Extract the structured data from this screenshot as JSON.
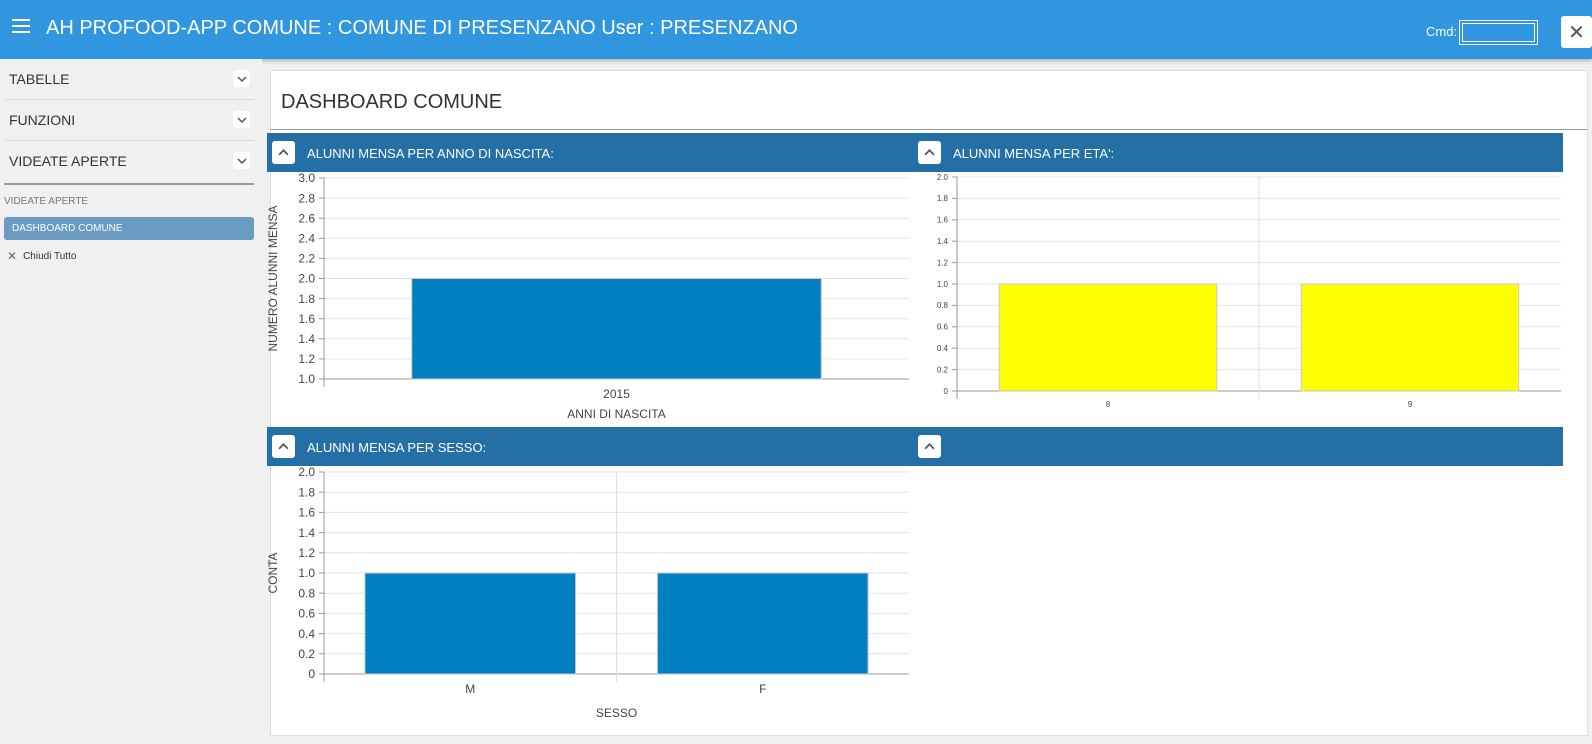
{
  "header": {
    "title": "AH PROFOOD-APP COMUNE : COMUNE DI PRESENZANO User : PRESENZANO",
    "cmd_label": "Cmd:",
    "cmd_value": "",
    "close_label": "✕",
    "accent": "#2f96df"
  },
  "sidebar": {
    "sections": [
      {
        "label": "TABELLE"
      },
      {
        "label": "FUNZIONI"
      },
      {
        "label": "VIDEATE APERTE"
      }
    ],
    "caption": "VIDEATE APERTE",
    "active_item": "DASHBOARD COMUNE",
    "close_all_icon": "✕",
    "close_all": "Chiudi Tutto"
  },
  "main": {
    "title": "DASHBOARD COMUNE",
    "panels": [
      {
        "title": "ALUNNI MENSA PER ANNO DI NASCITA:"
      },
      {
        "title": "ALUNNI MENSA PER ETA':"
      },
      {
        "title": "ALUNNI MENSA PER SESSO:"
      },
      {
        "title": ""
      }
    ]
  },
  "chart_data": [
    {
      "type": "bar",
      "categories": [
        "2015"
      ],
      "values": [
        2
      ],
      "xlabel": "ANNI DI NASCITA",
      "ylabel": "NUMERO ALUNNI MENSA",
      "ylim": [
        1.0,
        3.0
      ],
      "yticks": [
        "1.0",
        "1.2",
        "1.4",
        "1.6",
        "1.8",
        "2.0",
        "2.2",
        "2.4",
        "2.6",
        "2.8",
        "3.0"
      ],
      "color": "#0080c3",
      "grid": true
    },
    {
      "type": "bar",
      "categories": [
        "8",
        "9"
      ],
      "values": [
        1,
        1
      ],
      "xlabel": "",
      "ylabel": "",
      "ylim": [
        0,
        2.0
      ],
      "yticks": [
        "0",
        "0.2",
        "0.4",
        "0.6",
        "0.8",
        "1.0",
        "1.2",
        "1.4",
        "1.6",
        "1.8",
        "2.0"
      ],
      "color": "#ffff00",
      "grid": true
    },
    {
      "type": "bar",
      "categories": [
        "M",
        "F"
      ],
      "values": [
        1,
        1
      ],
      "xlabel": "SESSO",
      "ylabel": "CONTA",
      "ylim": [
        0,
        2.0
      ],
      "yticks": [
        "0",
        "0.2",
        "0.4",
        "0.6",
        "0.8",
        "1.0",
        "1.2",
        "1.4",
        "1.6",
        "1.8",
        "2.0"
      ],
      "color": "#0080c3",
      "grid": true
    }
  ]
}
